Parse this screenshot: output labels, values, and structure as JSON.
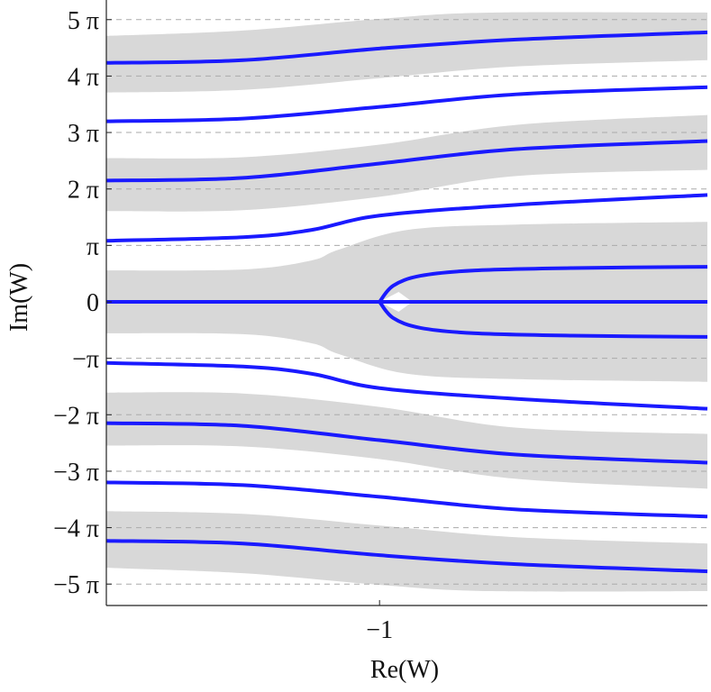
{
  "chart_data": {
    "type": "line",
    "title": "",
    "xlabel": "Re(W)",
    "ylabel": "Im(W)",
    "xlim": [
      -2.0,
      0.2
    ],
    "ylim": [
      -16.9,
      16.8
    ],
    "x_ticks": [
      {
        "value": -1,
        "label": "−1"
      }
    ],
    "y_ticks": [
      {
        "value": 15.708,
        "label": "5 π"
      },
      {
        "value": 12.566,
        "label": "4 π"
      },
      {
        "value": 9.425,
        "label": "3 π"
      },
      {
        "value": 6.283,
        "label": "2 π"
      },
      {
        "value": 3.142,
        "label": "π"
      },
      {
        "value": 0,
        "label": "0"
      },
      {
        "value": -3.142,
        "label": "−π"
      },
      {
        "value": -6.283,
        "label": "−2 π"
      },
      {
        "value": -9.425,
        "label": "−3 π"
      },
      {
        "value": -12.566,
        "label": "−4 π"
      },
      {
        "value": -15.708,
        "label": "−5 π"
      }
    ],
    "grid": "horizontal dashed at each multiple of π",
    "line_color": "#1a1aff",
    "band_color": "#d8d8d8",
    "series": [
      {
        "points": [
          [
            -1.0,
            0.0
          ],
          [
            -0.95,
            0.9
          ],
          [
            -0.85,
            1.45
          ],
          [
            -0.65,
            1.75
          ],
          [
            -0.3,
            1.88
          ],
          [
            0.2,
            1.95
          ]
        ]
      },
      {
        "points": [
          [
            -1.0,
            0.0
          ],
          [
            -0.95,
            -0.9
          ],
          [
            -0.85,
            -1.45
          ],
          [
            -0.65,
            -1.75
          ],
          [
            -0.3,
            -1.88
          ],
          [
            0.2,
            -1.95
          ]
        ]
      },
      {
        "points": [
          [
            -2.0,
            0.0
          ],
          [
            0.2,
            0.0
          ]
        ]
      },
      {
        "points": [
          [
            -2.0,
            3.4
          ],
          [
            -1.5,
            3.6
          ],
          [
            -1.25,
            4.0
          ],
          [
            -1.0,
            4.8
          ],
          [
            -0.5,
            5.4
          ],
          [
            0.2,
            5.95
          ]
        ]
      },
      {
        "points": [
          [
            -2.0,
            -3.4
          ],
          [
            -1.5,
            -3.6
          ],
          [
            -1.25,
            -4.0
          ],
          [
            -1.0,
            -4.8
          ],
          [
            -0.5,
            -5.4
          ],
          [
            0.2,
            -5.95
          ]
        ]
      },
      {
        "points": [
          [
            -2.0,
            6.75
          ],
          [
            -1.5,
            6.9
          ],
          [
            -1.0,
            7.7
          ],
          [
            -0.5,
            8.5
          ],
          [
            0.2,
            8.95
          ]
        ]
      },
      {
        "points": [
          [
            -2.0,
            -6.75
          ],
          [
            -1.5,
            -6.9
          ],
          [
            -1.0,
            -7.7
          ],
          [
            -0.5,
            -8.5
          ],
          [
            0.2,
            -8.95
          ]
        ]
      },
      {
        "points": [
          [
            -2.0,
            10.05
          ],
          [
            -1.5,
            10.2
          ],
          [
            -1.0,
            10.85
          ],
          [
            -0.5,
            11.55
          ],
          [
            0.2,
            11.95
          ]
        ]
      },
      {
        "points": [
          [
            -2.0,
            -10.05
          ],
          [
            -1.5,
            -10.2
          ],
          [
            -1.0,
            -10.85
          ],
          [
            -0.5,
            -11.55
          ],
          [
            0.2,
            -11.95
          ]
        ]
      },
      {
        "points": [
          [
            -2.0,
            13.3
          ],
          [
            -1.5,
            13.45
          ],
          [
            -1.0,
            14.1
          ],
          [
            -0.5,
            14.6
          ],
          [
            0.2,
            15.0
          ]
        ]
      },
      {
        "points": [
          [
            -2.0,
            -13.3
          ],
          [
            -1.5,
            -13.45
          ],
          [
            -1.0,
            -14.1
          ],
          [
            -0.5,
            -14.6
          ],
          [
            0.2,
            -15.0
          ]
        ]
      }
    ],
    "bands": [
      {
        "top": [
          [
            -2.0,
            1.75
          ],
          [
            -1.5,
            1.8
          ],
          [
            -1.25,
            2.3
          ],
          [
            -1.15,
            2.9
          ],
          [
            -0.9,
            4.0
          ],
          [
            -0.5,
            4.3
          ],
          [
            0.2,
            4.45
          ]
        ],
        "bottom": [
          [
            -2.0,
            -1.75
          ],
          [
            -1.5,
            -1.8
          ],
          [
            -1.25,
            -2.3
          ],
          [
            -1.15,
            -2.9
          ],
          [
            -0.9,
            -4.0
          ],
          [
            -0.5,
            -4.3
          ],
          [
            0.2,
            -4.45
          ]
        ],
        "notch": [
          [
            -1.0,
            0.0
          ],
          [
            -0.93,
            0.55
          ],
          [
            -0.88,
            0.0
          ],
          [
            -0.93,
            -0.55
          ]
        ]
      },
      {
        "top": [
          [
            -2.0,
            8.0
          ],
          [
            -1.5,
            8.05
          ],
          [
            -1.0,
            8.75
          ],
          [
            -0.5,
            9.85
          ],
          [
            0.2,
            10.4
          ]
        ],
        "bottom": [
          [
            -2.0,
            5.05
          ],
          [
            -1.5,
            5.1
          ],
          [
            -1.0,
            5.85
          ],
          [
            -0.5,
            7.0
          ],
          [
            0.2,
            7.35
          ]
        ]
      },
      {
        "top": [
          [
            -2.0,
            -5.05
          ],
          [
            -1.5,
            -5.1
          ],
          [
            -1.0,
            -5.85
          ],
          [
            -0.5,
            -7.0
          ],
          [
            0.2,
            -7.35
          ]
        ],
        "bottom": [
          [
            -2.0,
            -8.0
          ],
          [
            -1.5,
            -8.05
          ],
          [
            -1.0,
            -8.75
          ],
          [
            -0.5,
            -9.85
          ],
          [
            0.2,
            -10.4
          ]
        ]
      },
      {
        "top": [
          [
            -2.0,
            14.8
          ],
          [
            -1.5,
            15.1
          ],
          [
            -1.0,
            15.75
          ],
          [
            -0.6,
            16.1
          ],
          [
            0.2,
            16.1
          ]
        ],
        "bottom": [
          [
            -2.0,
            11.65
          ],
          [
            -1.5,
            11.8
          ],
          [
            -1.0,
            12.45
          ],
          [
            -0.5,
            13.1
          ],
          [
            0.2,
            13.45
          ]
        ]
      },
      {
        "top": [
          [
            -2.0,
            -11.65
          ],
          [
            -1.5,
            -11.8
          ],
          [
            -1.0,
            -12.45
          ],
          [
            -0.5,
            -13.1
          ],
          [
            0.2,
            -13.45
          ]
        ],
        "bottom": [
          [
            -2.0,
            -14.8
          ],
          [
            -1.5,
            -15.1
          ],
          [
            -1.0,
            -15.75
          ],
          [
            -0.6,
            -16.1
          ],
          [
            0.2,
            -16.1
          ]
        ]
      }
    ]
  }
}
